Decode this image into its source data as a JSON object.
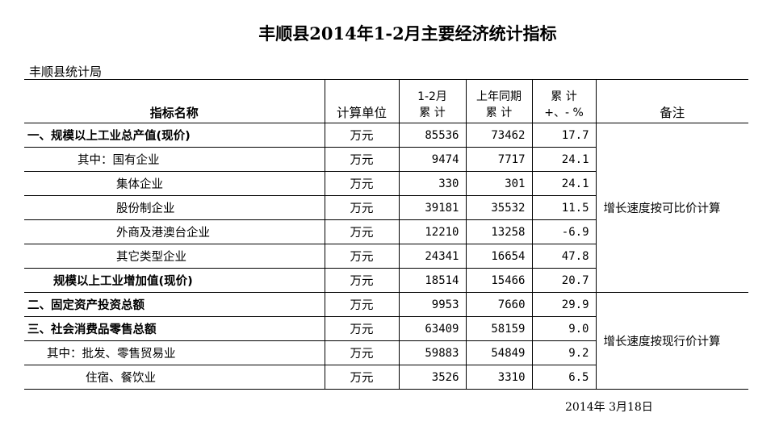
{
  "title": "丰顺县2014年1-2月主要经济统计指标",
  "org": "丰顺县统计局",
  "date": "2014年 3月18日",
  "header": {
    "name": "指标名称",
    "unit": "计算单位",
    "cur_line1": "1-2月",
    "cur_line2": "累  计",
    "prev_line1": "上年同期",
    "prev_line2": "累  计",
    "pct_line1": "累  计",
    "pct_line2": "+、- %",
    "note": "备注"
  },
  "rows": [
    {
      "name": "一、规模以上工业总产值(现价)",
      "unit": "万元",
      "cur": "85536",
      "prev": "73462",
      "pct": "17.7"
    },
    {
      "name": "其中：国有企业",
      "unit": "万元",
      "cur": "9474",
      "prev": "7717",
      "pct": "24.1"
    },
    {
      "name": "集体企业",
      "unit": "万元",
      "cur": "330",
      "prev": "301",
      "pct": "24.1"
    },
    {
      "name": "股份制企业",
      "unit": "万元",
      "cur": "39181",
      "prev": "35532",
      "pct": "11.5"
    },
    {
      "name": "外商及港澳台企业",
      "unit": "万元",
      "cur": "12210",
      "prev": "13258",
      "pct": "-6.9"
    },
    {
      "name": "其它类型企业",
      "unit": "万元",
      "cur": "24341",
      "prev": "16654",
      "pct": "47.8"
    },
    {
      "name": "规模以上工业增加值(现价)",
      "unit": "万元",
      "cur": "18514",
      "prev": "15466",
      "pct": "20.7"
    },
    {
      "name": "二、固定资产投资总额",
      "unit": "万元",
      "cur": "9953",
      "prev": "7660",
      "pct": "29.9"
    },
    {
      "name": "三、社会消费品零售总额",
      "unit": "万元",
      "cur": "63409",
      "prev": "58159",
      "pct": "9.0"
    },
    {
      "name": "其中：批发、零售贸易业",
      "unit": "万元",
      "cur": "59883",
      "prev": "54849",
      "pct": "9.2"
    },
    {
      "name": "住宿、餐饮业",
      "unit": "万元",
      "cur": "3526",
      "prev": "3310",
      "pct": "6.5"
    }
  ],
  "notes": {
    "industry": "增长速度按可比价计算",
    "other": "增长速度按现行价计算"
  }
}
